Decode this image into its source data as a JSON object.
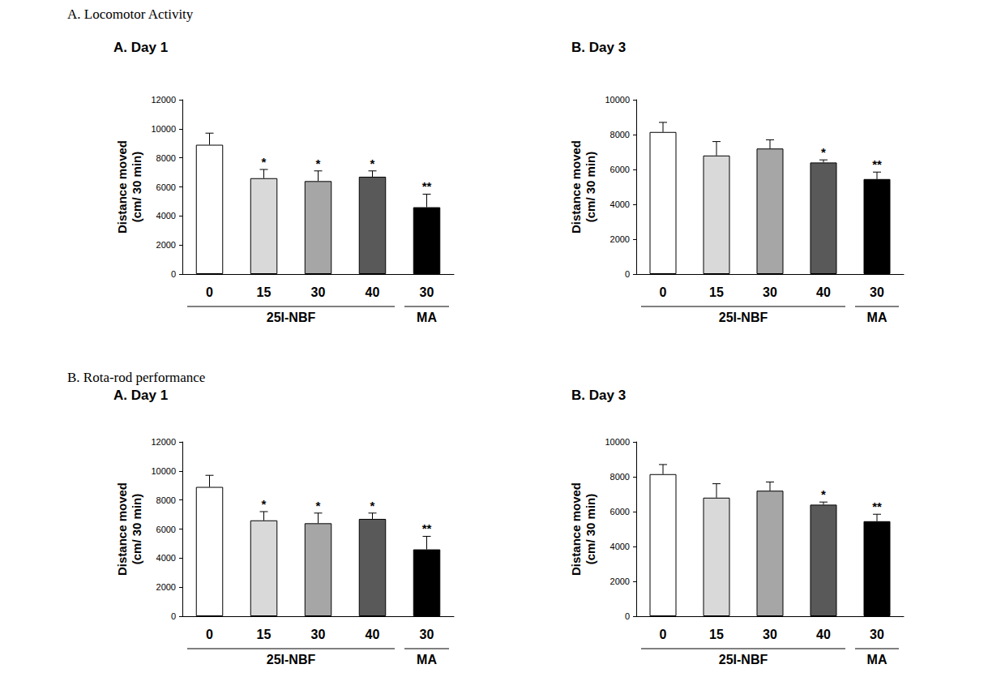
{
  "chart_data": [
    {
      "type": "bar",
      "subtitle": "A. Locomotor Activity",
      "title": "A. Day 1",
      "ylabel": "Distance moved\n(cm/ 30 min)",
      "categories": [
        "0",
        "15",
        "30",
        "40",
        "30"
      ],
      "group_labels": [
        "25I-NBF",
        "25I-NBF",
        "25I-NBF",
        "25I-NBF",
        "MA"
      ],
      "values": [
        8900,
        6600,
        6400,
        6700,
        4600
      ],
      "errors": [
        800,
        600,
        700,
        400,
        900
      ],
      "significance": [
        null,
        "*",
        "*",
        "*",
        "**"
      ],
      "colors": [
        "#ffffff",
        "#d9d9d9",
        "#a6a6a6",
        "#595959",
        "#000000"
      ],
      "ylim": [
        0,
        12000
      ],
      "yticks": [
        0,
        2000,
        4000,
        6000,
        8000,
        10000,
        12000
      ],
      "grid": false
    },
    {
      "type": "bar",
      "title": "B. Day 3",
      "ylabel": "Distance moved\n(cm/ 30 min)",
      "categories": [
        "0",
        "15",
        "30",
        "40",
        "30"
      ],
      "group_labels": [
        "25I-NBF",
        "25I-NBF",
        "25I-NBF",
        "25I-NBF",
        "MA"
      ],
      "values": [
        8150,
        6800,
        7200,
        6400,
        5450
      ],
      "errors": [
        550,
        800,
        500,
        150,
        400
      ],
      "significance": [
        null,
        null,
        null,
        "*",
        "**"
      ],
      "colors": [
        "#ffffff",
        "#d9d9d9",
        "#a6a6a6",
        "#595959",
        "#000000"
      ],
      "ylim": [
        0,
        10000
      ],
      "yticks": [
        0,
        2000,
        4000,
        6000,
        8000,
        10000
      ],
      "grid": false
    },
    {
      "type": "bar",
      "subtitle": "B. Rota-rod performance",
      "title": "A. Day 1",
      "ylabel": "Distance moved\n(cm/ 30 min)",
      "categories": [
        "0",
        "15",
        "30",
        "40",
        "30"
      ],
      "group_labels": [
        "25I-NBF",
        "25I-NBF",
        "25I-NBF",
        "25I-NBF",
        "MA"
      ],
      "values": [
        8900,
        6600,
        6400,
        6700,
        4600
      ],
      "errors": [
        800,
        600,
        700,
        400,
        900
      ],
      "significance": [
        null,
        "*",
        "*",
        "*",
        "**"
      ],
      "colors": [
        "#ffffff",
        "#d9d9d9",
        "#a6a6a6",
        "#595959",
        "#000000"
      ],
      "ylim": [
        0,
        12000
      ],
      "yticks": [
        0,
        2000,
        4000,
        6000,
        8000,
        10000,
        12000
      ],
      "grid": false
    },
    {
      "type": "bar",
      "title": "B. Day 3",
      "ylabel": "Distance moved\n(cm/ 30 min)",
      "categories": [
        "0",
        "15",
        "30",
        "40",
        "30"
      ],
      "group_labels": [
        "25I-NBF",
        "25I-NBF",
        "25I-NBF",
        "25I-NBF",
        "MA"
      ],
      "values": [
        8150,
        6800,
        7200,
        6400,
        5450
      ],
      "errors": [
        550,
        800,
        500,
        150,
        400
      ],
      "significance": [
        null,
        null,
        null,
        "*",
        "**"
      ],
      "colors": [
        "#ffffff",
        "#d9d9d9",
        "#a6a6a6",
        "#595959",
        "#000000"
      ],
      "ylim": [
        0,
        10000
      ],
      "yticks": [
        0,
        2000,
        4000,
        6000,
        8000,
        10000
      ],
      "grid": false
    }
  ]
}
